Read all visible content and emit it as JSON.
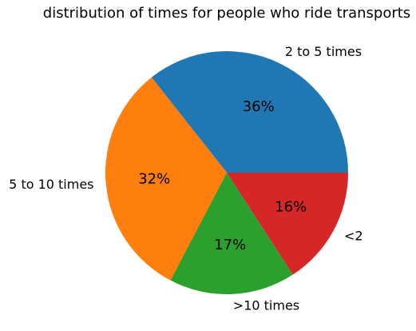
{
  "chart_data": {
    "type": "pie",
    "title": "distribution of times for people who ride transports",
    "slices": [
      {
        "label": "2 to 5 times",
        "value": 36,
        "pct_label": "36%",
        "color": "#1f77b4"
      },
      {
        "label": "5 to 10 times",
        "value": 32,
        "pct_label": "32%",
        "color": "#ff7f0e"
      },
      {
        "label": ">10 times",
        "value": 17,
        "pct_label": "17%",
        "color": "#2ca02c"
      },
      {
        "label": "<2",
        "value": 16,
        "pct_label": "16%",
        "color": "#d62728"
      }
    ],
    "start_angle_deg": 0,
    "direction": "counterclockwise",
    "legend": "none"
  }
}
